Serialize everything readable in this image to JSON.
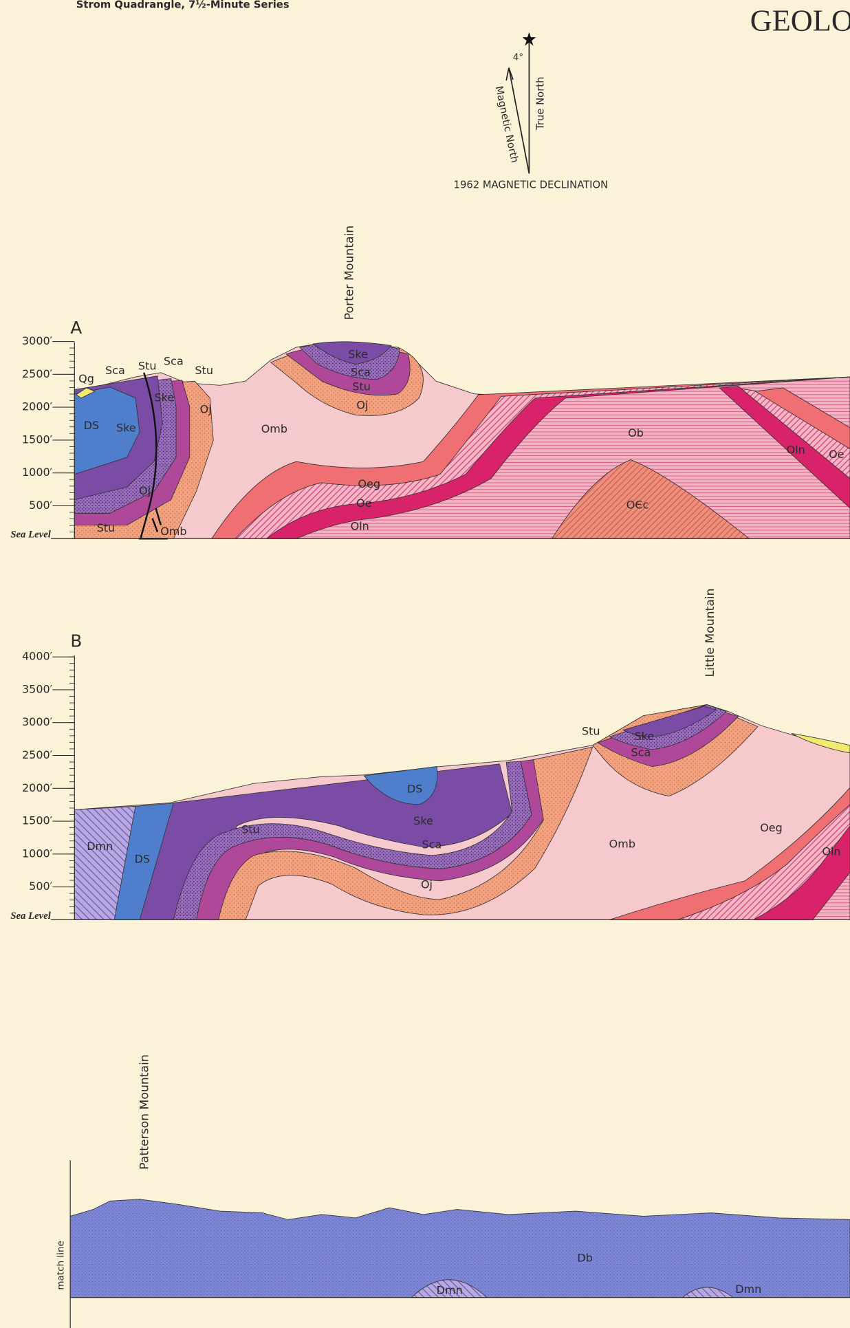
{
  "header": {
    "series": "Strom Quadrangle, 7½-Minute Series",
    "title": "GEOLO"
  },
  "declination": {
    "angle": "4°",
    "magnetic_north": "Magnetic North",
    "true_north": "True North",
    "caption": "1962 MAGNETIC DECLINATION"
  },
  "section_a": {
    "letter": "A",
    "peak": "Porter Mountain",
    "elevations": [
      "3000′",
      "2500′",
      "2000′",
      "1500′",
      "1000′",
      "500′",
      "Sea Level"
    ],
    "units": [
      "Qg",
      "Sca",
      "Stu",
      "Sca",
      "Stu",
      "Ske",
      "Oj",
      "DS",
      "Ske",
      "Omb",
      "Oj",
      "Stu",
      "Omb",
      "Ske",
      "Sca",
      "Stu",
      "Oj",
      "Ob",
      "Oeg",
      "Oe",
      "Oln",
      "OЄc",
      "Oln",
      "Oe"
    ]
  },
  "section_b": {
    "letter": "B",
    "peak": "Little Mountain",
    "elevations": [
      "4000′",
      "3500′",
      "3000′",
      "2500′",
      "2000′",
      "1500′",
      "1000′",
      "500′",
      "Sea Level"
    ],
    "units": [
      "Stu",
      "Ske",
      "Sca",
      "DS",
      "Ske",
      "Sca",
      "Oj",
      "Omb",
      "Stu",
      "Dmn",
      "DS",
      "Oeg",
      "Oln"
    ]
  },
  "section_c": {
    "peak": "Patterson Mountain",
    "match_line": "match line",
    "units": [
      "Db",
      "Dmn",
      "Dmn"
    ]
  }
}
